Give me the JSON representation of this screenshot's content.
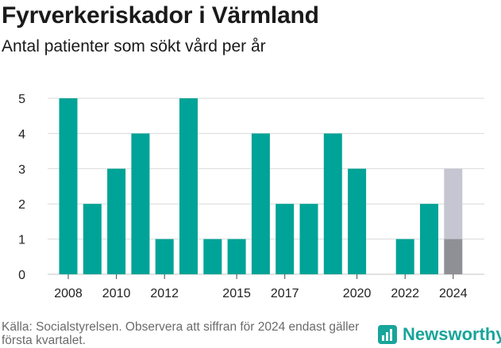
{
  "title": "Fyrverkeriskador i Värmland",
  "subtitle": "Antal patienter som sökt vård per år",
  "source_note": "Källa: Socialstyrelsen. Observera att siffran för 2024 endast gäller första kvartalet.",
  "brand": {
    "name": "Newsworthy",
    "icon": "newsworthy-logo-icon"
  },
  "colors": {
    "bar": "#00a397",
    "partial_projected": "#c6c6d2",
    "partial_actual": "#8f8f96",
    "grid": "#d9d9d9"
  },
  "chart_data": {
    "type": "bar",
    "categories": [
      2008,
      2009,
      2010,
      2011,
      2012,
      2013,
      2014,
      2015,
      2016,
      2017,
      2018,
      2019,
      2020,
      2021,
      2022,
      2023,
      2024
    ],
    "values": [
      5,
      2,
      3,
      4,
      1,
      5,
      1,
      1,
      4,
      2,
      2,
      4,
      3,
      0,
      1,
      2,
      1
    ],
    "partial_year": {
      "category": 2024,
      "actual": 1,
      "total_shown": 3
    },
    "x_tick_labels": [
      "2008",
      "2010",
      "2012",
      "2015",
      "2017",
      "2020",
      "2022",
      "2024"
    ],
    "y_tick_labels": [
      "0",
      "1",
      "2",
      "3",
      "4",
      "5"
    ],
    "ylim": [
      0,
      5
    ],
    "grid": true
  }
}
